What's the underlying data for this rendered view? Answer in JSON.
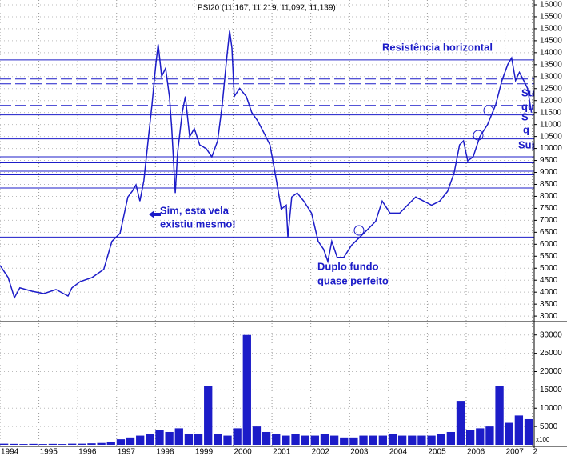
{
  "chart_data": [
    {
      "type": "line",
      "title": "PSI20 (11,167, 11,219, 11,092, 11,139)",
      "x": [
        1994.0,
        1994.21,
        1994.37,
        1994.51,
        1994.82,
        1995.13,
        1995.44,
        1995.75,
        1995.85,
        1996.06,
        1996.37,
        1996.67,
        1996.88,
        1997.09,
        1997.29,
        1997.4,
        1997.5,
        1997.6,
        1997.7,
        1997.81,
        1997.91,
        1998.01,
        1998.07,
        1998.16,
        1998.26,
        1998.36,
        1998.42,
        1998.51,
        1998.57,
        1998.69,
        1998.77,
        1998.88,
        1999.0,
        1999.14,
        1999.31,
        1999.45,
        1999.6,
        1999.72,
        1999.82,
        1999.91,
        1999.97,
        2000.03,
        2000.17,
        2000.34,
        2000.48,
        2000.63,
        2000.79,
        2000.95,
        2001.1,
        2001.24,
        2001.37,
        2001.41,
        2001.51,
        2001.65,
        2001.82,
        2002.02,
        2002.19,
        2002.33,
        2002.44,
        2002.54,
        2002.68,
        2002.85,
        2003.05,
        2003.26,
        2003.47,
        2003.67,
        2003.84,
        2004.04,
        2004.29,
        2004.49,
        2004.7,
        2004.91,
        2005.11,
        2005.32,
        2005.52,
        2005.69,
        2005.83,
        2005.93,
        2006.04,
        2006.18,
        2006.35,
        2006.55,
        2006.76,
        2006.92,
        2007.07,
        2007.17,
        2007.27,
        2007.37,
        2007.48,
        2007.58,
        2007.68
      ],
      "series": [
        {
          "color": "#1c1cc8",
          "values": [
            5120,
            4610,
            3770,
            4180,
            4040,
            3940,
            4110,
            3840,
            4180,
            4440,
            4610,
            4950,
            6120,
            6460,
            7970,
            8210,
            8480,
            7800,
            8650,
            10320,
            11830,
            13510,
            14350,
            13010,
            13350,
            12170,
            10830,
            8140,
            9820,
            11500,
            12170,
            10490,
            10830,
            10150,
            9990,
            9650,
            10320,
            11830,
            13510,
            14920,
            14190,
            12170,
            12510,
            12170,
            11500,
            11160,
            10660,
            10150,
            8810,
            7470,
            7630,
            6290,
            7970,
            8140,
            7800,
            7300,
            6120,
            5790,
            5280,
            6120,
            5450,
            5450,
            5960,
            6290,
            6630,
            6960,
            7800,
            7300,
            7300,
            7630,
            7970,
            7800,
            7630,
            7800,
            8210,
            8980,
            10150,
            10320,
            9480,
            9650,
            10490,
            11000,
            11830,
            12840,
            13510,
            13780,
            12840,
            13180,
            12840,
            12510,
            11500
          ]
        }
      ],
      "xlim": [
        1994,
        2007.75
      ],
      "xticks": [
        1994,
        1995,
        1996,
        1997,
        1998,
        1999,
        2000,
        2001,
        2002,
        2003,
        2004,
        2005,
        2006,
        2007,
        {
          "value": 2007.7,
          "label": "2"
        }
      ],
      "ylim": [
        2770,
        16200
      ],
      "yticks": [
        3000,
        3500,
        4000,
        4500,
        5000,
        5500,
        6000,
        6500,
        7000,
        7500,
        8000,
        8500,
        9000,
        9500,
        10000,
        10500,
        11000,
        11500,
        12000,
        12500,
        13000,
        13500,
        14000,
        14500,
        15000,
        15500,
        16000
      ],
      "grid": true,
      "levels": [
        {
          "value": 13700,
          "style": "solid"
        },
        {
          "value": 12900,
          "style": "dashed"
        },
        {
          "value": 12700,
          "style": "dashed"
        },
        {
          "value": 11800,
          "style": "dashed"
        },
        {
          "value": 11400,
          "style": "solid"
        },
        {
          "value": 10400,
          "style": "solid"
        },
        {
          "value": 9650,
          "style": "solid"
        },
        {
          "value": 9400,
          "style": "solid"
        },
        {
          "value": 9050,
          "style": "solid"
        },
        {
          "value": 8900,
          "style": "solid"
        },
        {
          "value": 8350,
          "style": "solid"
        },
        {
          "value": 6300,
          "style": "solid"
        }
      ],
      "annotations": [
        "Resistência horizontal",
        "Sim, esta vela",
        "existiu mesmo!",
        "Duplo fundo",
        "quase perfeito",
        "Su",
        "qu",
        "S",
        "q",
        "Sup"
      ]
    },
    {
      "type": "bar",
      "unit_label": "x100",
      "x": [
        1994.0,
        1994.25,
        1994.5,
        1994.75,
        1995.0,
        1995.25,
        1995.5,
        1995.75,
        1996.0,
        1996.25,
        1996.5,
        1996.75,
        1997.0,
        1997.25,
        1997.5,
        1997.75,
        1998.0,
        1998.25,
        1998.5,
        1998.75,
        1999.0,
        1999.25,
        1999.5,
        1999.75,
        2000.0,
        2000.25,
        2000.5,
        2000.75,
        2001.0,
        2001.25,
        2001.5,
        2001.75,
        2002.0,
        2002.25,
        2002.5,
        2002.75,
        2003.0,
        2003.25,
        2003.5,
        2003.75,
        2004.0,
        2004.25,
        2004.5,
        2004.75,
        2005.0,
        2005.25,
        2005.5,
        2005.75,
        2006.0,
        2006.25,
        2006.5,
        2006.75,
        2007.0,
        2007.25,
        2007.5
      ],
      "values": [
        300,
        250,
        200,
        250,
        200,
        250,
        200,
        300,
        300,
        400,
        500,
        700,
        1500,
        2000,
        2500,
        3000,
        4000,
        3500,
        4500,
        3000,
        3000,
        16000,
        3000,
        2500,
        4500,
        30000,
        5000,
        3500,
        3000,
        2500,
        3000,
        2500,
        2500,
        3000,
        2500,
        2000,
        2000,
        2500,
        2500,
        2500,
        3000,
        2500,
        2500,
        2500,
        2500,
        3000,
        3500,
        12000,
        4000,
        4500,
        5000,
        16000,
        6000,
        8000,
        7000
      ],
      "color": "#1c1cc8",
      "ylim": [
        0,
        33000
      ],
      "yticks": [
        5000,
        10000,
        15000,
        20000,
        25000,
        30000
      ]
    }
  ]
}
